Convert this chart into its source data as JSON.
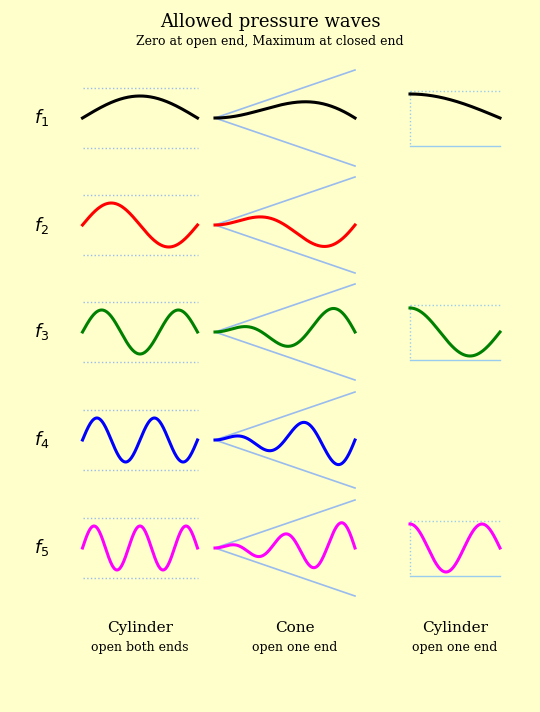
{
  "title": "Allowed pressure waves",
  "subtitle": "Zero at open end, Maximum at closed end",
  "bg_color": "#FFFFCC",
  "wave_colors": [
    "black",
    "red",
    "green",
    "blue",
    "magenta"
  ],
  "col_labels": [
    "Cylinder\nopen both ends",
    "Cone\nopen one end",
    "Cylinder\nopen one end"
  ],
  "row_labels": [
    "f_1",
    "f_2",
    "f_3",
    "f_4",
    "f_5"
  ],
  "line_color": "#99BBEE",
  "box_color": "#99CCEE",
  "title_fontsize": 13,
  "subtitle_fontsize": 9,
  "label_fontsize": 13,
  "col_fontsize": 11,
  "col_sub_fontsize": 9
}
